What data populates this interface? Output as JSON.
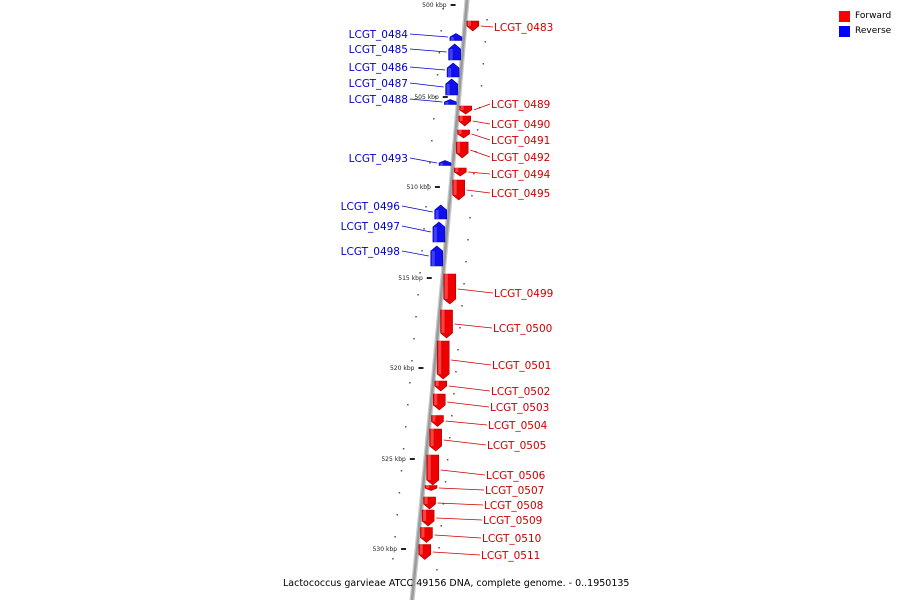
{
  "caption": "Lactococcus garvieae ATCC 49156 DNA, complete genome. - 0..1950135",
  "legend": [
    {
      "label": "Forward",
      "color": "#ff0000"
    },
    {
      "label": "Reverse",
      "color": "#0000ff"
    }
  ],
  "colors": {
    "forward": "#ee0000",
    "forward_label": "#cc0000",
    "reverse": "#1010ee",
    "reverse_label": "#0000cc",
    "backbone": "#9a9a9a"
  },
  "ticks": [
    {
      "kbp": 500,
      "label": "500 kbp"
    },
    {
      "kbp": 505,
      "label": "505 kbp"
    },
    {
      "kbp": 510,
      "label": "510 kbp"
    },
    {
      "kbp": 515,
      "label": "515 kbp"
    },
    {
      "kbp": 520,
      "label": "520 kbp"
    },
    {
      "kbp": 525,
      "label": "525 kbp"
    },
    {
      "kbp": 530,
      "label": "530 kbp"
    }
  ],
  "genes": [
    {
      "name": "LCGT_0483",
      "strand": "forward"
    },
    {
      "name": "LCGT_0484",
      "strand": "reverse"
    },
    {
      "name": "LCGT_0485",
      "strand": "reverse"
    },
    {
      "name": "LCGT_0486",
      "strand": "reverse"
    },
    {
      "name": "LCGT_0487",
      "strand": "reverse"
    },
    {
      "name": "LCGT_0488",
      "strand": "reverse"
    },
    {
      "name": "LCGT_0489",
      "strand": "forward"
    },
    {
      "name": "LCGT_0490",
      "strand": "forward"
    },
    {
      "name": "LCGT_0491",
      "strand": "forward"
    },
    {
      "name": "LCGT_0492",
      "strand": "forward"
    },
    {
      "name": "LCGT_0493",
      "strand": "reverse"
    },
    {
      "name": "LCGT_0494",
      "strand": "forward"
    },
    {
      "name": "LCGT_0495",
      "strand": "forward"
    },
    {
      "name": "LCGT_0496",
      "strand": "reverse"
    },
    {
      "name": "LCGT_0497",
      "strand": "reverse"
    },
    {
      "name": "LCGT_0498",
      "strand": "reverse"
    },
    {
      "name": "LCGT_0499",
      "strand": "forward"
    },
    {
      "name": "LCGT_0500",
      "strand": "forward"
    },
    {
      "name": "LCGT_0501",
      "strand": "forward"
    },
    {
      "name": "LCGT_0502",
      "strand": "forward"
    },
    {
      "name": "LCGT_0503",
      "strand": "forward"
    },
    {
      "name": "LCGT_0504",
      "strand": "forward"
    },
    {
      "name": "LCGT_0505",
      "strand": "forward"
    },
    {
      "name": "LCGT_0506",
      "strand": "forward"
    },
    {
      "name": "LCGT_0507",
      "strand": "forward"
    },
    {
      "name": "LCGT_0508",
      "strand": "forward"
    },
    {
      "name": "LCGT_0509",
      "strand": "forward"
    },
    {
      "name": "LCGT_0510",
      "strand": "forward"
    },
    {
      "name": "LCGT_0511",
      "strand": "forward"
    }
  ]
}
